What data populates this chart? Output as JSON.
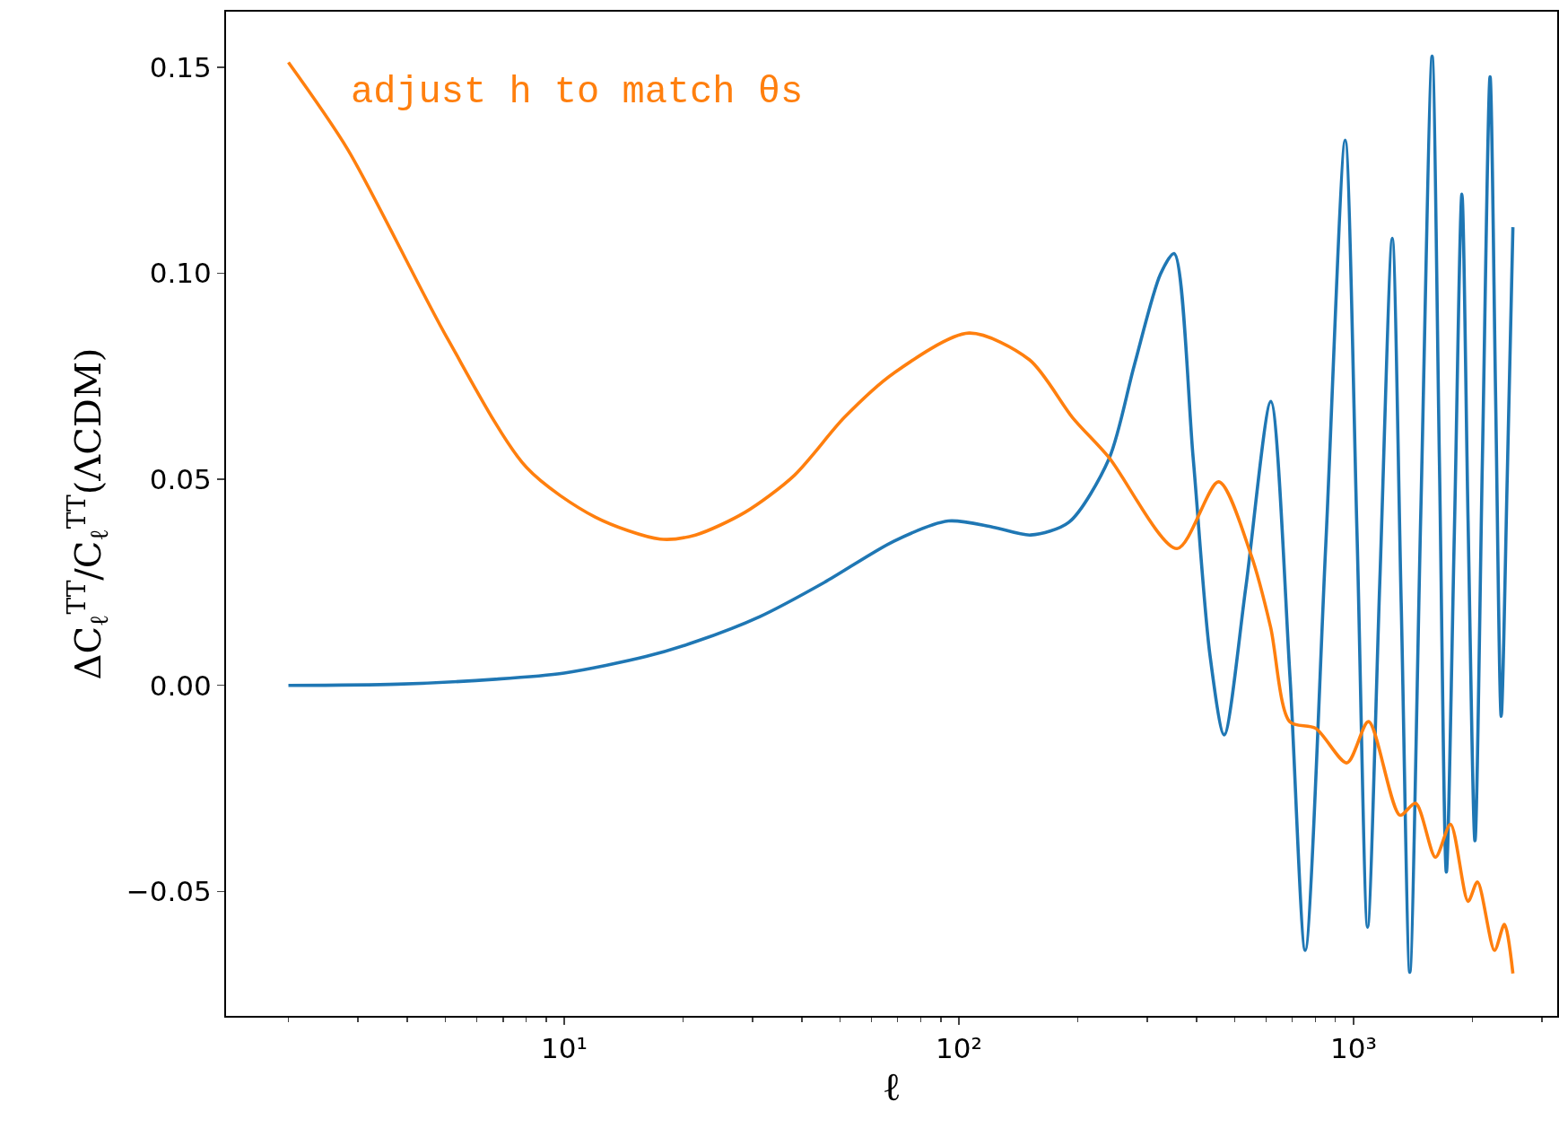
{
  "chart_data": {
    "type": "line",
    "xlabel": "ℓ",
    "ylabel": "ΔC$_{ℓ}$$^{TT}$/C$_{ℓ}$$^{TT}$(ΛCDM)",
    "annotations": [
      "adjust h to match θs"
    ],
    "log": "x",
    "grid": false,
    "marker": "none",
    "line_style": "solid",
    "xlim": [
      1.39,
      3280
    ],
    "xticks": [
      {
        "value": 10,
        "label": "10¹"
      },
      {
        "value": 100,
        "label": "10²"
      },
      {
        "value": 1000,
        "label": "10³"
      }
    ],
    "ylim": [
      -0.0802,
      0.1635
    ],
    "yticks": [
      {
        "value": -0.05,
        "label": "−0.05"
      },
      {
        "value": 0,
        "label": "0.00"
      },
      0.05,
      {
        "value": 0.1,
        "label": "0.10"
      },
      0.15
    ],
    "series": [
      {
        "color": "#1f77b4",
        "x": [
          2,
          3.78,
          6.7,
          10,
          16.1,
          21.5,
          31.3,
          45.6,
          68.4,
          94,
          122,
          152,
          190,
          240,
          278,
          324,
          351,
          392,
          432,
          470,
          533,
          617,
          690,
          754,
          850,
          952,
          1020,
          1085,
          1165,
          1253,
          1320,
          1388,
          1480,
          1581,
          1650,
          1718,
          1800,
          1881,
          1950,
          2030,
          2120,
          2217,
          2290,
          2366,
          2450,
          2533
        ],
        "values": [
          0.0,
          0.0003,
          0.0015,
          0.003,
          0.007,
          0.0106,
          0.0167,
          0.025,
          0.035,
          0.0399,
          0.0384,
          0.0365,
          0.0396,
          0.055,
          0.0776,
          0.0998,
          0.1048,
          0.0554,
          0.0078,
          -0.012,
          0.0237,
          0.0689,
          0.002,
          -0.0643,
          0.034,
          0.1323,
          0.037,
          -0.0587,
          0.025,
          0.1085,
          0.02,
          -0.0696,
          0.042,
          0.1527,
          0.054,
          -0.0453,
          0.037,
          0.1192,
          0.04,
          -0.0377,
          0.055,
          0.1477,
          0.07,
          -0.0075,
          0.05,
          0.1112
        ]
      },
      {
        "color": "#ff7f0e",
        "x": [
          2,
          2.83,
          5.05,
          8.02,
          12.0,
          17.5,
          21.5,
          28.7,
          38.3,
          51.2,
          68.4,
          106,
          151,
          194,
          240,
          357,
          455,
          550,
          616,
          689,
          801,
          962,
          1091,
          1310,
          1436,
          1612,
          1760,
          1950,
          2060,
          2275,
          2410,
          2533
        ],
        "values": [
          0.1512,
          0.13,
          0.0843,
          0.0529,
          0.0408,
          0.0355,
          0.0365,
          0.042,
          0.051,
          0.065,
          0.0758,
          0.0855,
          0.079,
          0.065,
          0.0553,
          0.0332,
          0.0494,
          0.0316,
          0.0142,
          -0.0088,
          -0.0104,
          -0.0188,
          -0.0088,
          -0.0315,
          -0.0286,
          -0.0417,
          -0.0337,
          -0.0524,
          -0.0477,
          -0.0643,
          -0.058,
          -0.0699
        ]
      }
    ]
  }
}
